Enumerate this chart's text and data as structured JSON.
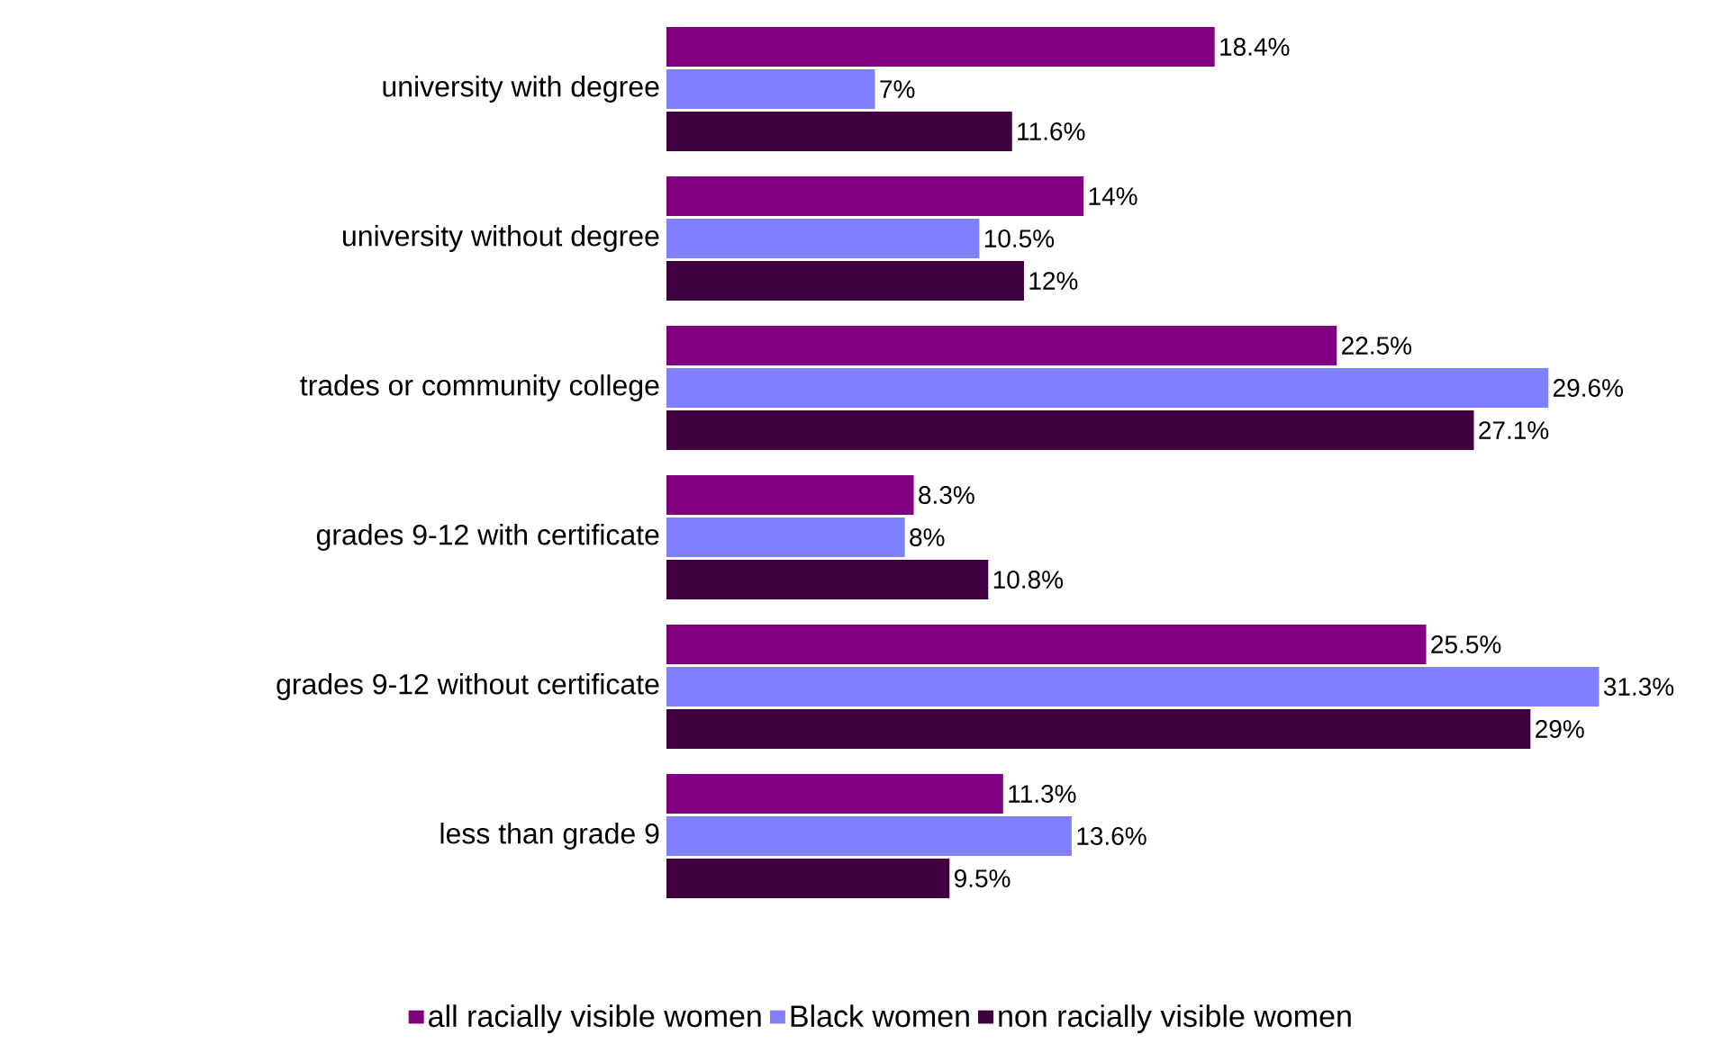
{
  "chart_data": {
    "type": "bar",
    "orientation": "horizontal",
    "legend": "bottom",
    "categories": [
      "university with degree",
      "university without degree",
      "trades or community college",
      "grades 9-12 with certificate",
      "grades 9-12 without certificate",
      "less than grade 9"
    ],
    "series": [
      {
        "name": "all racially visible women",
        "color": "#800080",
        "values": [
          18.4,
          14,
          22.5,
          8.3,
          25.5,
          11.3
        ],
        "value_labels": [
          "18.4%",
          "14%",
          "22.5%",
          "8.3%",
          "25.5%",
          "11.3%"
        ]
      },
      {
        "name": "Black women",
        "color": "#8080ff",
        "values": [
          7,
          10.5,
          29.6,
          8,
          31.3,
          13.6
        ],
        "value_labels": [
          "7%",
          "10.5%",
          "29.6%",
          "8%",
          "31.3%",
          "13.6%"
        ]
      },
      {
        "name": "non racially visible women",
        "color": "#400040",
        "values": [
          11.6,
          12,
          27.1,
          10.8,
          29,
          9.5
        ],
        "value_labels": [
          "11.6%",
          "12%",
          "27.1%",
          "10.8%",
          "29%",
          "9.5%"
        ]
      }
    ]
  }
}
